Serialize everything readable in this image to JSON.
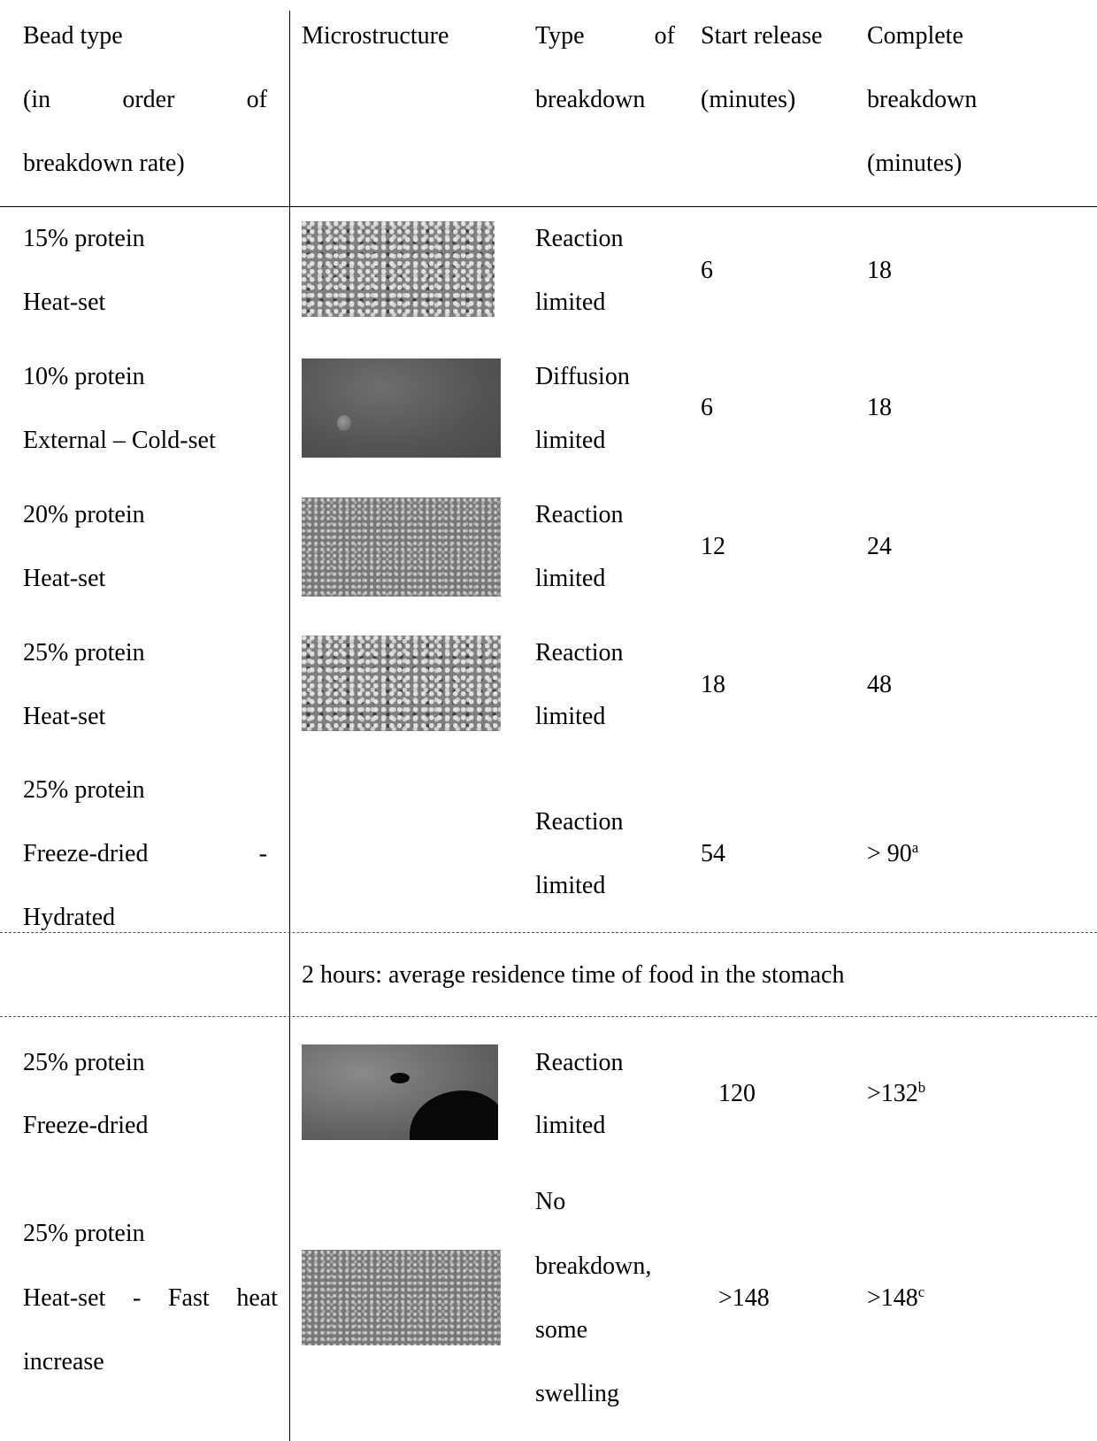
{
  "header": {
    "col1": [
      "Bead type",
      [
        "(in",
        "order",
        "of"
      ],
      "breakdown rate)"
    ],
    "col2": "Microstructure",
    "col3": [
      [
        "Type",
        "of"
      ],
      "breakdown"
    ],
    "col4": [
      "Start release",
      "(minutes)"
    ],
    "col5": [
      "Complete",
      "breakdown",
      "(minutes)"
    ]
  },
  "rows_before": [
    {
      "bead": [
        "15% protein",
        "Heat-set"
      ],
      "breakdown": [
        "Reaction",
        "limited"
      ],
      "start": "6",
      "complete": "18",
      "image": "sem-heat-set-15"
    },
    {
      "bead": [
        "10% protein",
        "External – Cold-set"
      ],
      "breakdown": [
        "Diffusion",
        "limited"
      ],
      "start": "6",
      "complete": "18",
      "image": "sem-cold-set-10"
    },
    {
      "bead": [
        "20% protein",
        "Heat-set"
      ],
      "breakdown": [
        "Reaction",
        "limited"
      ],
      "start": "12",
      "complete": "24",
      "image": "sem-heat-set-20"
    },
    {
      "bead": [
        "25% protein",
        "Heat-set"
      ],
      "breakdown": [
        "Reaction",
        "limited"
      ],
      "start": "18",
      "complete": "48",
      "image": "sem-heat-set-25"
    },
    {
      "bead": [
        "25% protein",
        [
          "Freeze-dried",
          "-"
        ],
        "Hydrated"
      ],
      "breakdown": [
        "Reaction",
        "limited"
      ],
      "start": "54",
      "complete": "> 90",
      "complete_sup": "a"
    }
  ],
  "separator_note": "2 hours: average residence time of food in the stomach",
  "rows_after": [
    {
      "bead": [
        "25% protein",
        "Freeze-dried"
      ],
      "breakdown": [
        "Reaction",
        "limited"
      ],
      "start": "120",
      "complete": ">132",
      "complete_sup": "b",
      "image": "sem-freeze-dried-25"
    },
    {
      "bead": [
        "25% protein",
        [
          "Heat-set",
          "-",
          "Fast",
          "heat"
        ],
        "increase"
      ],
      "breakdown": [
        "No",
        "breakdown,",
        "some",
        "swelling"
      ],
      "start": ">148",
      "complete": ">148",
      "complete_sup": "c",
      "image": "sem-fast-heat-25"
    }
  ]
}
